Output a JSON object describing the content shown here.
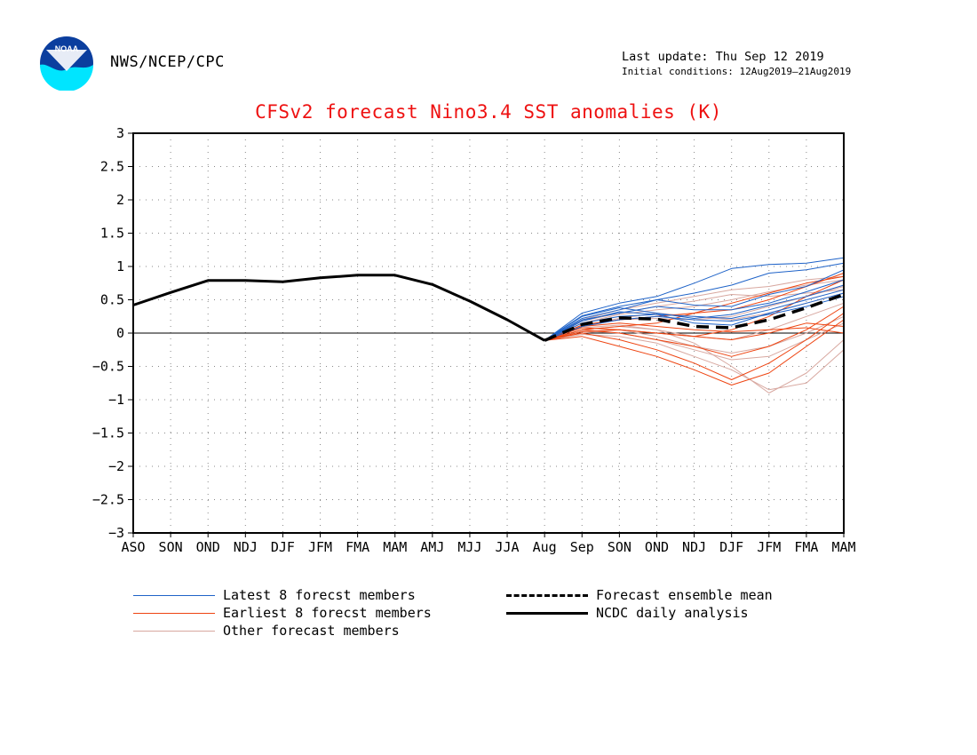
{
  "header": {
    "agency": "NWS/NCEP/CPC",
    "last_update": "Last update: Thu Sep 12 2019",
    "initial_conditions": "Initial conditions: 12Aug2019—21Aug2019",
    "logo_text": "NOAA",
    "logo_icon": "noaa-logo-icon"
  },
  "colors": {
    "title": "#ee1111",
    "latest": "#1f63c8",
    "earliest": "#ee4411",
    "other": "#d8a8a0",
    "analysis": "#000000",
    "mean": "#000000",
    "grid": "#888888"
  },
  "legend": {
    "latest": "Latest 8 forecst members",
    "earliest": "Earliest 8 forecst members",
    "other": "Other forecast members",
    "mean": "Forecast ensemble mean",
    "analysis": "NCDC daily analysis"
  },
  "chart_data": {
    "type": "line",
    "title": "CFSv2 forecast Nino3.4 SST anomalies (K)",
    "xlabel": "",
    "ylabel": "",
    "categories": [
      "ASO",
      "SON",
      "OND",
      "NDJ",
      "DJF",
      "JFM",
      "FMA",
      "MAM",
      "AMJ",
      "MJJ",
      "JJA",
      "Aug",
      "Sep",
      "SON",
      "OND",
      "NDJ",
      "DJF",
      "JFM",
      "FMA",
      "MAM"
    ],
    "ylim": [
      -3,
      3
    ],
    "yticks": [
      "3",
      "2.5",
      "2",
      "1.5",
      "1",
      "0.5",
      "0",
      "−0.5",
      "−1",
      "−1.5",
      "−2",
      "−2.5",
      "−3"
    ],
    "grid": true,
    "series": [
      {
        "name": "NCDC daily analysis",
        "group": "analysis",
        "x": [
          0,
          1,
          2,
          3,
          4,
          5,
          6,
          7,
          8,
          9,
          10,
          11
        ],
        "values": [
          0.42,
          0.61,
          0.79,
          0.79,
          0.77,
          0.83,
          0.87,
          0.87,
          0.73,
          0.48,
          0.2,
          -0.11
        ]
      },
      {
        "name": "Forecast ensemble mean",
        "group": "mean",
        "x": [
          11,
          12,
          13,
          14,
          15,
          16,
          17,
          18,
          19
        ],
        "values": [
          -0.11,
          0.13,
          0.23,
          0.21,
          0.1,
          0.08,
          0.2,
          0.38,
          0.58
        ]
      },
      {
        "group": "latest",
        "x": [
          11,
          12,
          13,
          14,
          15,
          16,
          17,
          18,
          19
        ],
        "values": [
          -0.11,
          0.3,
          0.45,
          0.55,
          0.75,
          0.97,
          1.03,
          1.05,
          1.13
        ]
      },
      {
        "group": "latest",
        "x": [
          11,
          12,
          13,
          14,
          15,
          16,
          17,
          18,
          19
        ],
        "values": [
          -0.11,
          0.26,
          0.4,
          0.5,
          0.6,
          0.72,
          0.9,
          0.95,
          1.05
        ]
      },
      {
        "group": "latest",
        "x": [
          11,
          12,
          13,
          14,
          15,
          16,
          17,
          18,
          19
        ],
        "values": [
          -0.11,
          0.22,
          0.35,
          0.5,
          0.42,
          0.4,
          0.58,
          0.7,
          0.95
        ]
      },
      {
        "group": "latest",
        "x": [
          11,
          12,
          13,
          14,
          15,
          16,
          17,
          18,
          19
        ],
        "values": [
          -0.11,
          0.2,
          0.3,
          0.4,
          0.35,
          0.35,
          0.45,
          0.62,
          0.8
        ]
      },
      {
        "group": "latest",
        "x": [
          11,
          12,
          13,
          14,
          15,
          16,
          17,
          18,
          19
        ],
        "values": [
          -0.11,
          0.25,
          0.38,
          0.3,
          0.22,
          0.28,
          0.42,
          0.55,
          0.72
        ]
      },
      {
        "group": "latest",
        "x": [
          11,
          12,
          13,
          14,
          15,
          16,
          17,
          18,
          19
        ],
        "values": [
          -0.11,
          0.15,
          0.25,
          0.28,
          0.25,
          0.22,
          0.35,
          0.5,
          0.65
        ]
      },
      {
        "group": "latest",
        "x": [
          11,
          12,
          13,
          14,
          15,
          16,
          17,
          18,
          19
        ],
        "values": [
          -0.11,
          0.18,
          0.32,
          0.28,
          0.15,
          0.12,
          0.3,
          0.45,
          0.6
        ]
      },
      {
        "group": "latest",
        "x": [
          11,
          12,
          13,
          14,
          15,
          16,
          17,
          18,
          19
        ],
        "values": [
          -0.11,
          0.1,
          0.2,
          0.25,
          0.2,
          0.18,
          0.28,
          0.4,
          0.55
        ]
      },
      {
        "group": "earliest",
        "x": [
          11,
          12,
          13,
          14,
          15,
          16,
          17,
          18,
          19
        ],
        "values": [
          -0.11,
          -0.05,
          -0.2,
          -0.35,
          -0.55,
          -0.78,
          -0.6,
          -0.2,
          0.2
        ]
      },
      {
        "group": "earliest",
        "x": [
          11,
          12,
          13,
          14,
          15,
          16,
          17,
          18,
          19
        ],
        "values": [
          -0.11,
          0.0,
          -0.1,
          -0.25,
          -0.45,
          -0.7,
          -0.45,
          -0.1,
          0.3
        ]
      },
      {
        "group": "earliest",
        "x": [
          11,
          12,
          13,
          14,
          15,
          16,
          17,
          18,
          19
        ],
        "values": [
          -0.11,
          0.05,
          0.0,
          -0.1,
          -0.2,
          -0.35,
          -0.2,
          0.05,
          0.4
        ]
      },
      {
        "group": "earliest",
        "x": [
          11,
          12,
          13,
          14,
          15,
          16,
          17,
          18,
          19
        ],
        "values": [
          -0.11,
          0.08,
          0.05,
          0.0,
          -0.05,
          -0.1,
          0.0,
          0.15,
          0.1
        ]
      },
      {
        "group": "earliest",
        "x": [
          11,
          12,
          13,
          14,
          15,
          16,
          17,
          18,
          19
        ],
        "values": [
          -0.11,
          0.1,
          0.15,
          0.1,
          0.05,
          0.02,
          0.05,
          0.08,
          0.0
        ]
      },
      {
        "group": "earliest",
        "x": [
          11,
          12,
          13,
          14,
          15,
          16,
          17,
          18,
          19
        ],
        "values": [
          -0.11,
          0.12,
          0.2,
          0.25,
          0.3,
          0.35,
          0.5,
          0.7,
          0.9
        ]
      },
      {
        "group": "earliest",
        "x": [
          11,
          12,
          13,
          14,
          15,
          16,
          17,
          18,
          19
        ],
        "values": [
          -0.11,
          0.05,
          0.1,
          0.15,
          0.3,
          0.45,
          0.6,
          0.75,
          0.85
        ]
      },
      {
        "group": "earliest",
        "x": [
          11,
          12,
          13,
          14,
          15,
          16,
          17,
          18,
          19
        ],
        "values": [
          -0.11,
          0.02,
          0.05,
          0.0,
          -0.05,
          0.05,
          0.25,
          0.55,
          0.8
        ]
      },
      {
        "group": "other",
        "x": [
          11,
          12,
          13,
          14,
          15,
          16,
          17,
          18,
          19
        ],
        "values": [
          -0.11,
          0.2,
          0.35,
          0.45,
          0.55,
          0.65,
          0.7,
          0.8,
          0.85
        ]
      },
      {
        "group": "other",
        "x": [
          11,
          12,
          13,
          14,
          15,
          16,
          17,
          18,
          19
        ],
        "values": [
          -0.11,
          0.15,
          0.28,
          0.35,
          0.4,
          0.5,
          0.62,
          0.72,
          0.8
        ]
      },
      {
        "group": "other",
        "x": [
          11,
          12,
          13,
          14,
          15,
          16,
          17,
          18,
          19
        ],
        "values": [
          -0.11,
          0.1,
          0.2,
          0.22,
          0.2,
          0.25,
          0.4,
          0.55,
          0.7
        ]
      },
      {
        "group": "other",
        "x": [
          11,
          12,
          13,
          14,
          15,
          16,
          17,
          18,
          19
        ],
        "values": [
          -0.11,
          0.05,
          0.1,
          0.05,
          -0.05,
          -0.1,
          0.05,
          0.25,
          0.45
        ]
      },
      {
        "group": "other",
        "x": [
          11,
          12,
          13,
          14,
          15,
          16,
          17,
          18,
          19
        ],
        "values": [
          -0.11,
          0.0,
          0.05,
          -0.05,
          -0.2,
          -0.3,
          -0.2,
          0.0,
          0.25
        ]
      },
      {
        "group": "other",
        "x": [
          11,
          12,
          13,
          14,
          15,
          16,
          17,
          18,
          19
        ],
        "values": [
          -0.11,
          -0.02,
          -0.05,
          -0.15,
          -0.35,
          -0.55,
          -0.85,
          -0.75,
          -0.25
        ]
      },
      {
        "group": "other",
        "x": [
          11,
          12,
          13,
          14,
          15,
          16,
          17,
          18,
          19
        ],
        "values": [
          -0.11,
          0.08,
          0.12,
          0.05,
          -0.15,
          -0.5,
          -0.9,
          -0.6,
          -0.1
        ]
      },
      {
        "group": "other",
        "x": [
          11,
          12,
          13,
          14,
          15,
          16,
          17,
          18,
          19
        ],
        "values": [
          -0.11,
          0.12,
          0.22,
          0.3,
          0.25,
          0.2,
          0.3,
          0.45,
          0.6
        ]
      },
      {
        "group": "other",
        "x": [
          11,
          12,
          13,
          14,
          15,
          16,
          17,
          18,
          19
        ],
        "values": [
          -0.11,
          0.18,
          0.3,
          0.4,
          0.48,
          0.58,
          0.55,
          0.6,
          0.65
        ]
      },
      {
        "group": "other",
        "x": [
          11,
          12,
          13,
          14,
          15,
          16,
          17,
          18,
          19
        ],
        "values": [
          -0.11,
          0.03,
          0.0,
          -0.1,
          -0.25,
          -0.4,
          -0.35,
          -0.1,
          0.15
        ]
      }
    ]
  }
}
